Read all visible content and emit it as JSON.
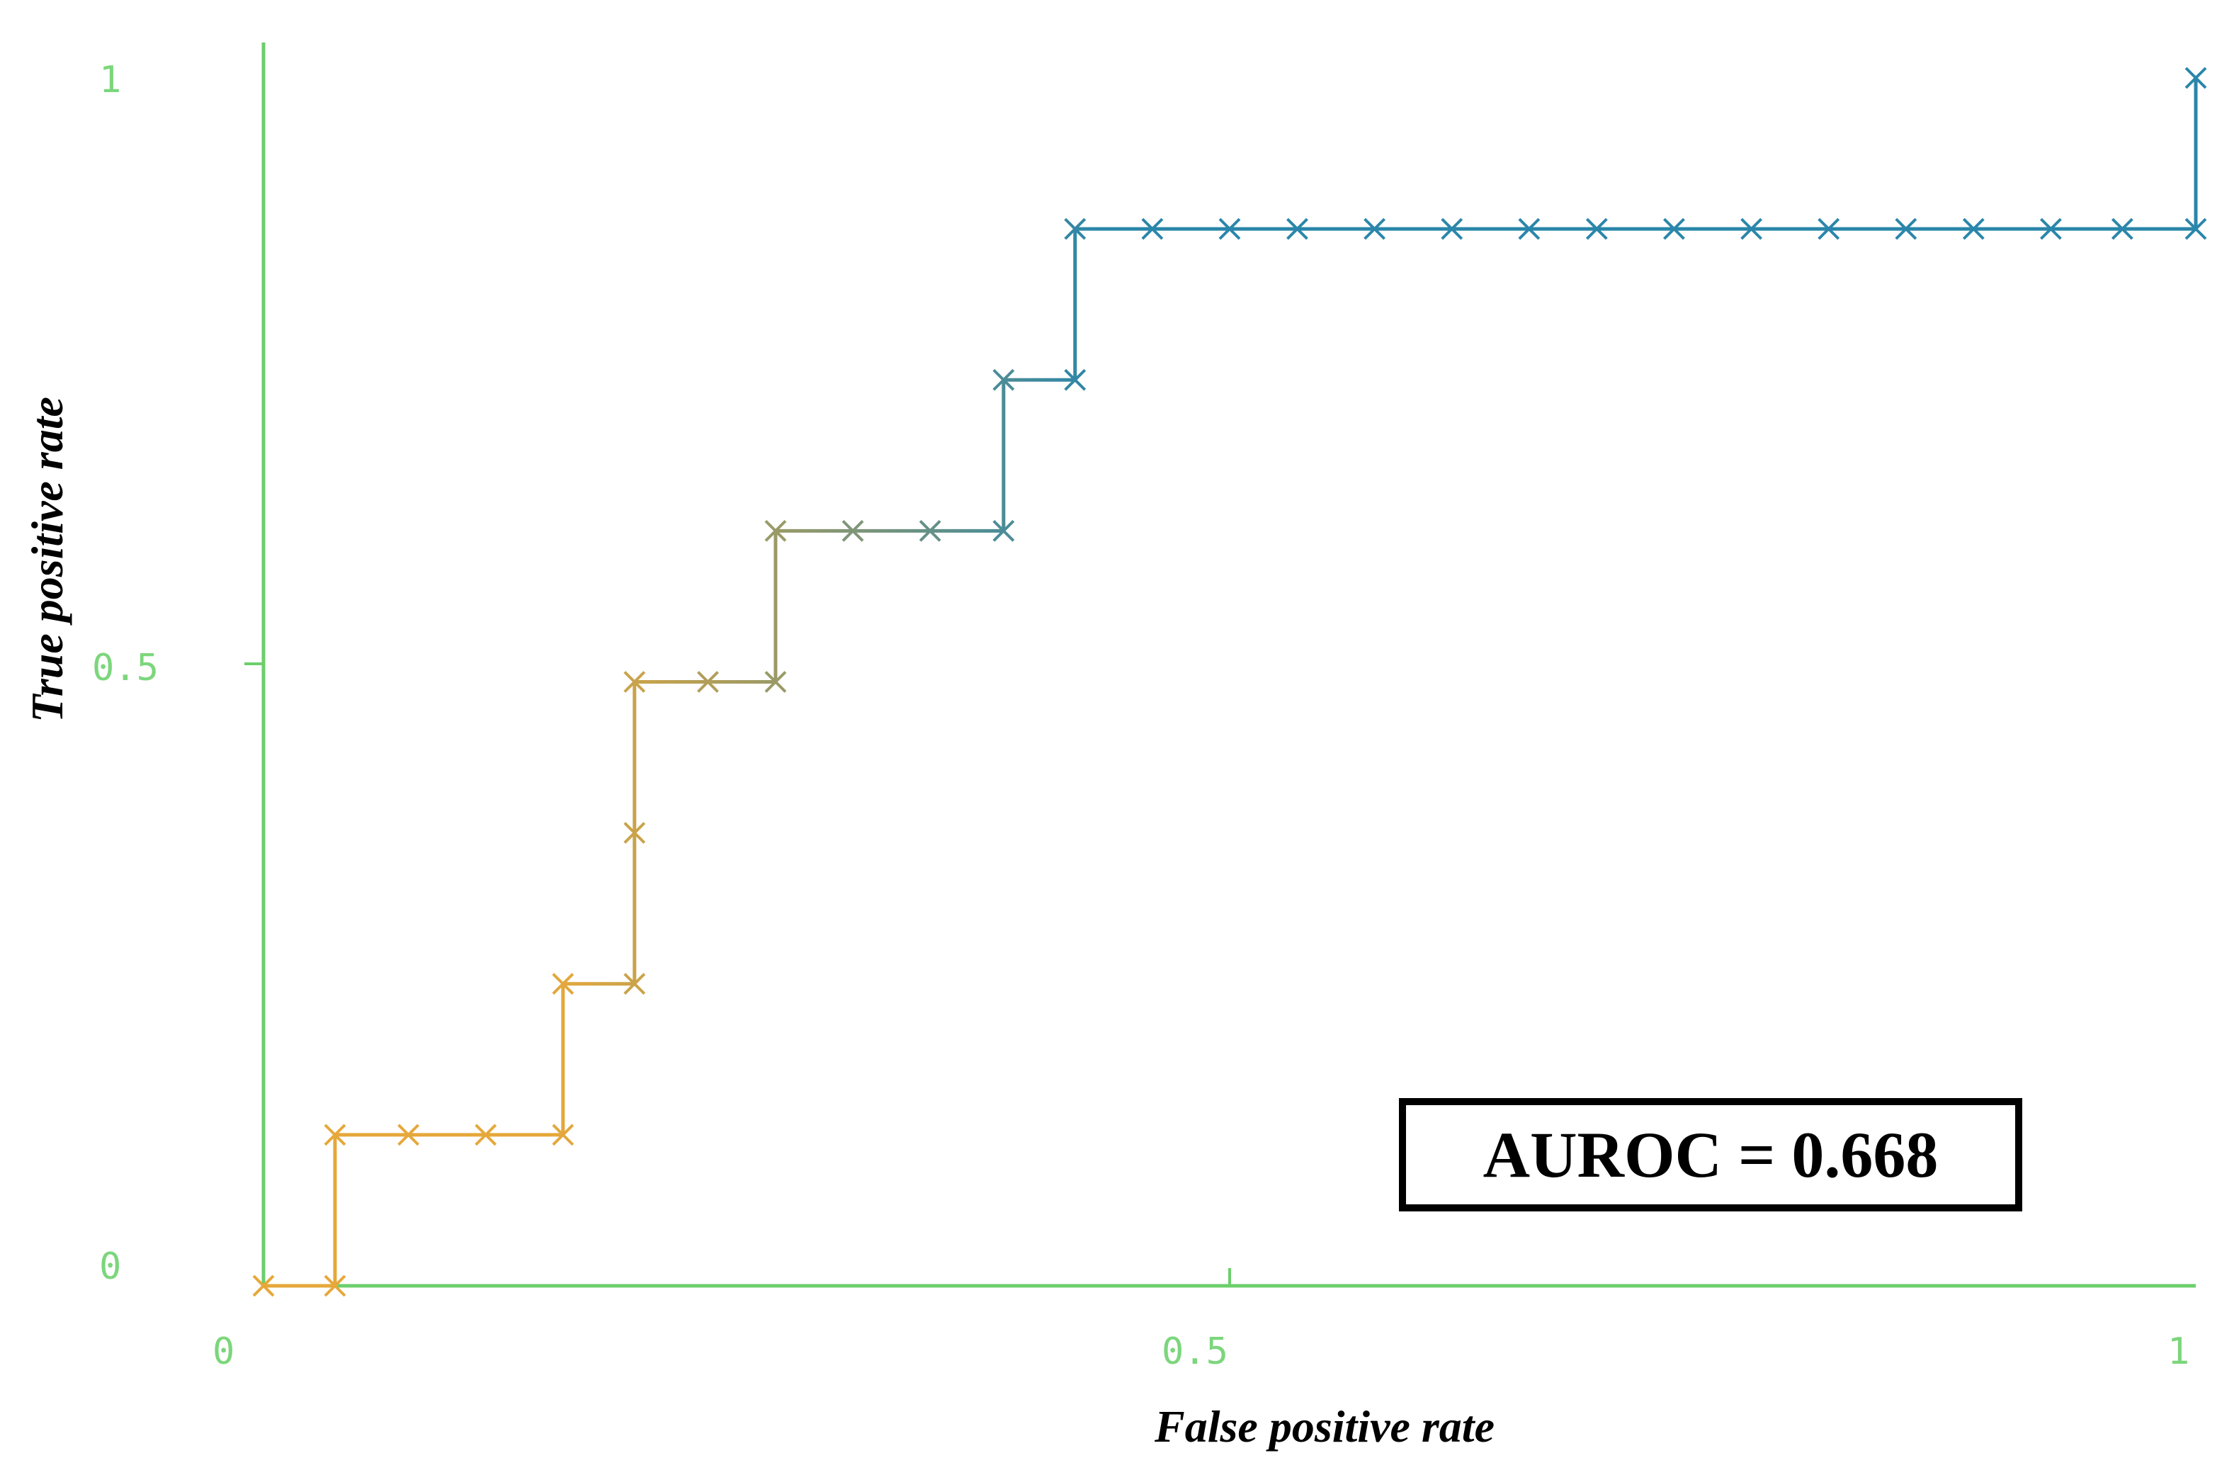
{
  "chart_data": {
    "type": "line",
    "title": "",
    "xlabel": "False positive rate",
    "ylabel": "True positive rate",
    "xlim": [
      0,
      1
    ],
    "ylim": [
      0,
      1
    ],
    "x_ticks": [
      "0",
      "0.5",
      "1"
    ],
    "y_ticks": [
      "0",
      "0.5",
      "1"
    ],
    "grid": false,
    "annotation": "AUROC = 0.668",
    "colors": {
      "axis": "#6ccf6c",
      "low": "#e6a83a",
      "high": "#2a86aa"
    },
    "series": [
      {
        "points": [
          [
            0.0,
            0.0
          ],
          [
            0.037,
            0.0
          ],
          [
            0.037,
            0.125
          ],
          [
            0.075,
            0.125
          ],
          [
            0.115,
            0.125
          ],
          [
            0.155,
            0.125
          ],
          [
            0.155,
            0.25
          ],
          [
            0.192,
            0.25
          ],
          [
            0.192,
            0.375
          ],
          [
            0.192,
            0.5
          ],
          [
            0.23,
            0.5
          ],
          [
            0.265,
            0.5
          ],
          [
            0.265,
            0.625
          ],
          [
            0.305,
            0.625
          ],
          [
            0.345,
            0.625
          ],
          [
            0.383,
            0.625
          ],
          [
            0.383,
            0.75
          ],
          [
            0.42,
            0.75
          ],
          [
            0.42,
            0.875
          ],
          [
            0.46,
            0.875
          ],
          [
            0.5,
            0.875
          ],
          [
            0.535,
            0.875
          ],
          [
            0.575,
            0.875
          ],
          [
            0.615,
            0.875
          ],
          [
            0.655,
            0.875
          ],
          [
            0.69,
            0.875
          ],
          [
            0.73,
            0.875
          ],
          [
            0.77,
            0.875
          ],
          [
            0.81,
            0.875
          ],
          [
            0.85,
            0.875
          ],
          [
            0.885,
            0.875
          ],
          [
            0.925,
            0.875
          ],
          [
            0.962,
            0.875
          ],
          [
            1.0,
            0.875
          ],
          [
            1.0,
            1.0
          ]
        ]
      }
    ]
  }
}
